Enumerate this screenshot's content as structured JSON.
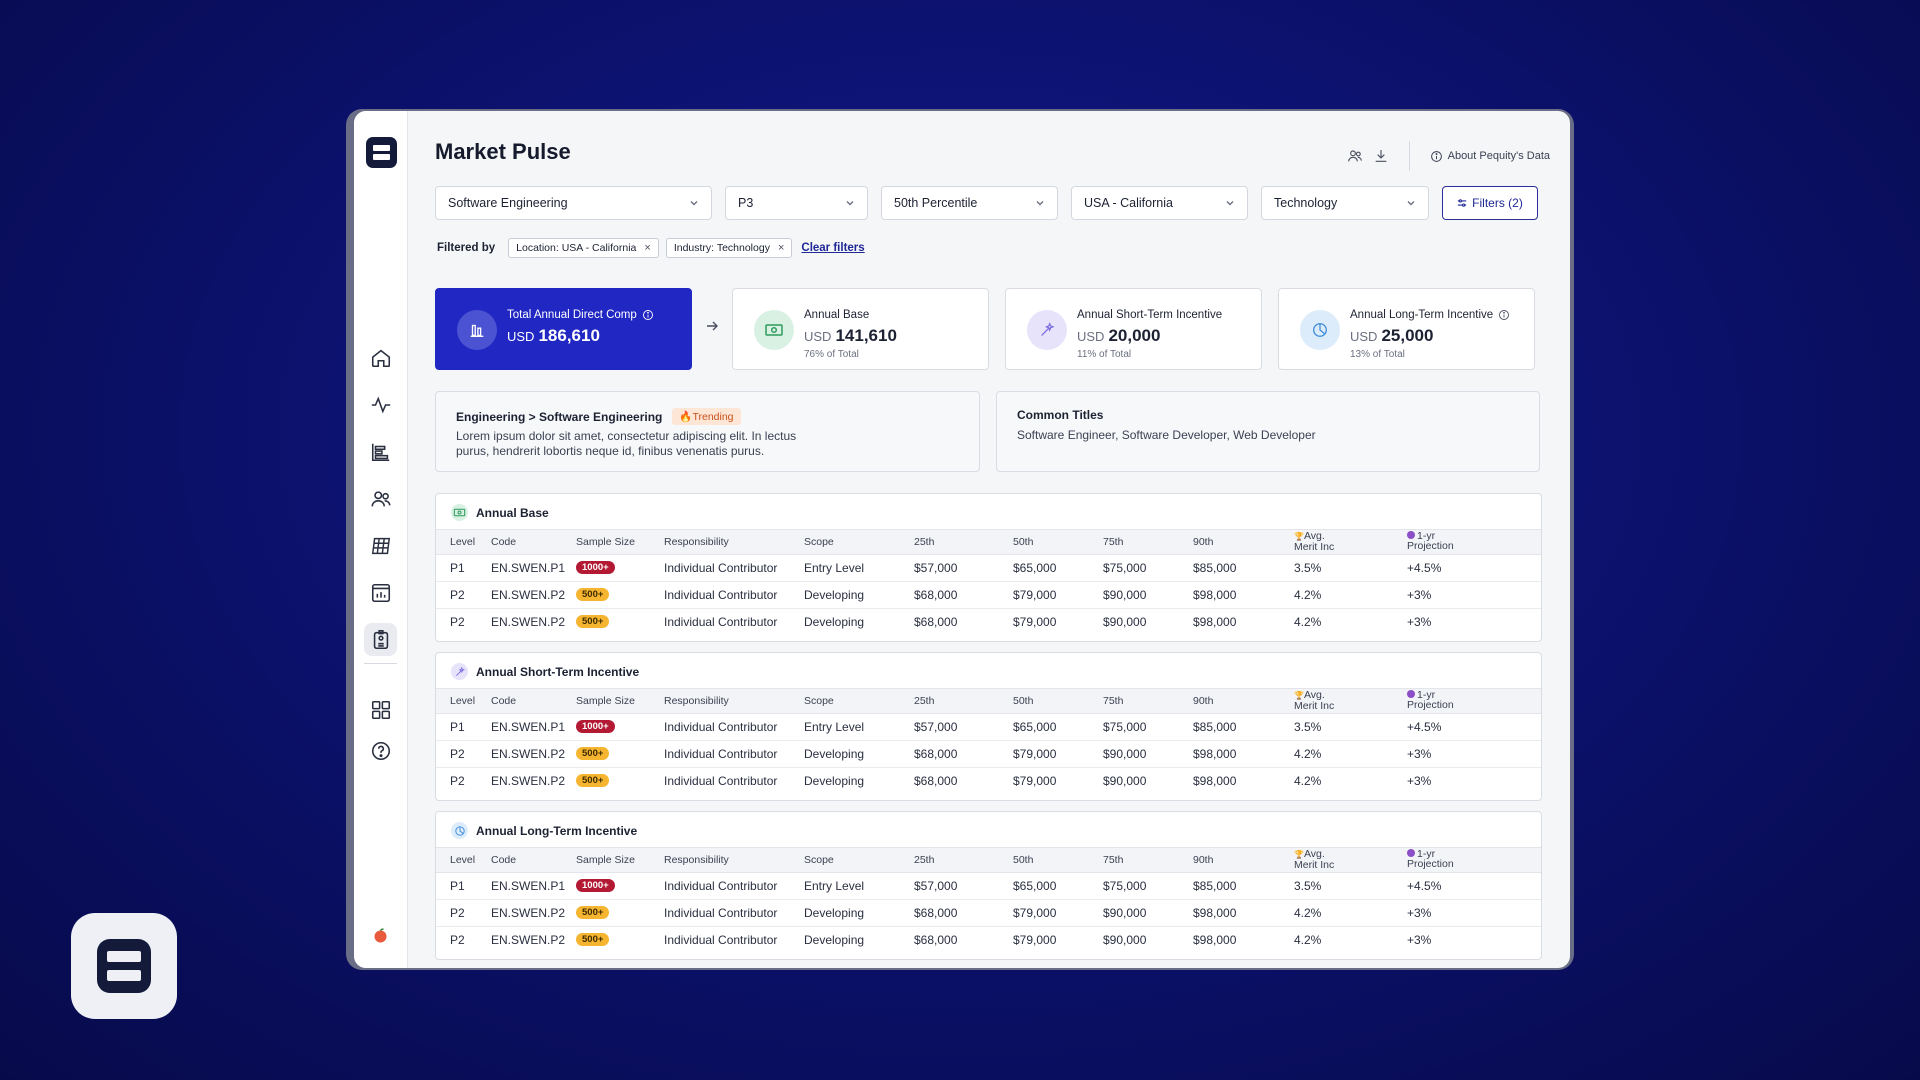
{
  "page": {
    "title": "Market Pulse",
    "about_label": "About Pequity's Data"
  },
  "filters": {
    "selects": [
      "Software Engineering",
      "P3",
      "50th Percentile",
      "USA - California",
      "Technology"
    ],
    "filters_button": "Filters (2)",
    "filtered_by_label": "Filtered by",
    "chips": [
      "Location: USA - California",
      "Industry: Technology"
    ],
    "clear_label": "Clear filters"
  },
  "summary": {
    "total": {
      "label": "Total Annual Direct Comp",
      "currency": "USD",
      "value": "186,610"
    },
    "base": {
      "label": "Annual Base",
      "currency": "USD",
      "value": "141,610",
      "share": "76% of Total"
    },
    "sti": {
      "label": "Annual Short-Term Incentive",
      "currency": "USD",
      "value": "20,000",
      "share": "11% of Total"
    },
    "lti": {
      "label": "Annual Long-Term Incentive",
      "currency": "USD",
      "value": "25,000",
      "share": "13% of Total"
    }
  },
  "job": {
    "path": "Engineering > Software Engineering",
    "trend_label": "Trending",
    "description_1": "Lorem ipsum dolor sit amet, consectetur adipiscing elit. In lectus",
    "description_2": "purus, hendrerit lobortis neque id, finibus venenatis purus."
  },
  "common_titles": {
    "label": "Common Titles",
    "value": "Software Engineer, Software Developer, Web Developer"
  },
  "table_headers": {
    "level": "Level",
    "code": "Code",
    "sample": "Sample Size",
    "responsibility": "Responsibility",
    "scope": "Scope",
    "p25": "25th",
    "p50": "50th",
    "p75": "75th",
    "p90": "90th",
    "merit_1": "Avg.",
    "merit_2": "Merit Inc",
    "proj_1": "1-yr",
    "proj_2": "Projection"
  },
  "tables": [
    {
      "title": "Annual Base",
      "rows": [
        {
          "level": "P1",
          "code": "EN.SWEN.P1",
          "sample": "1000+",
          "responsibility": "Individual Contributor",
          "scope": "Entry Level",
          "p25": "$57,000",
          "p50": "$65,000",
          "p75": "$75,000",
          "p90": "$85,000",
          "merit": "3.5%",
          "proj": "+4.5%"
        },
        {
          "level": "P2",
          "code": "EN.SWEN.P2",
          "sample": "500+",
          "responsibility": "Individual Contributor",
          "scope": "Developing",
          "p25": "$68,000",
          "p50": "$79,000",
          "p75": "$90,000",
          "p90": "$98,000",
          "merit": "4.2%",
          "proj": "+3%"
        },
        {
          "level": "P2",
          "code": "EN.SWEN.P2",
          "sample": "500+",
          "responsibility": "Individual Contributor",
          "scope": "Developing",
          "p25": "$68,000",
          "p50": "$79,000",
          "p75": "$90,000",
          "p90": "$98,000",
          "merit": "4.2%",
          "proj": "+3%"
        }
      ]
    },
    {
      "title": "Annual Short-Term Incentive",
      "rows": [
        {
          "level": "P1",
          "code": "EN.SWEN.P1",
          "sample": "1000+",
          "responsibility": "Individual Contributor",
          "scope": "Entry Level",
          "p25": "$57,000",
          "p50": "$65,000",
          "p75": "$75,000",
          "p90": "$85,000",
          "merit": "3.5%",
          "proj": "+4.5%"
        },
        {
          "level": "P2",
          "code": "EN.SWEN.P2",
          "sample": "500+",
          "responsibility": "Individual Contributor",
          "scope": "Developing",
          "p25": "$68,000",
          "p50": "$79,000",
          "p75": "$90,000",
          "p90": "$98,000",
          "merit": "4.2%",
          "proj": "+3%"
        },
        {
          "level": "P2",
          "code": "EN.SWEN.P2",
          "sample": "500+",
          "responsibility": "Individual Contributor",
          "scope": "Developing",
          "p25": "$68,000",
          "p50": "$79,000",
          "p75": "$90,000",
          "p90": "$98,000",
          "merit": "4.2%",
          "proj": "+3%"
        }
      ]
    },
    {
      "title": "Annual Long-Term Incentive",
      "rows": [
        {
          "level": "P1",
          "code": "EN.SWEN.P1",
          "sample": "1000+",
          "responsibility": "Individual Contributor",
          "scope": "Entry Level",
          "p25": "$57,000",
          "p50": "$65,000",
          "p75": "$75,000",
          "p90": "$85,000",
          "merit": "3.5%",
          "proj": "+4.5%"
        },
        {
          "level": "P2",
          "code": "EN.SWEN.P2",
          "sample": "500+",
          "responsibility": "Individual Contributor",
          "scope": "Developing",
          "p25": "$68,000",
          "p50": "$79,000",
          "p75": "$90,000",
          "p90": "$98,000",
          "merit": "4.2%",
          "proj": "+3%"
        },
        {
          "level": "P2",
          "code": "EN.SWEN.P2",
          "sample": "500+",
          "responsibility": "Individual Contributor",
          "scope": "Developing",
          "p25": "$68,000",
          "p50": "$79,000",
          "p75": "$90,000",
          "p90": "$98,000",
          "merit": "4.2%",
          "proj": "+3%"
        }
      ]
    }
  ],
  "icons": {
    "sidebar": [
      "home-icon",
      "activity-icon",
      "bar-chart-icon",
      "users-icon",
      "grid-table-icon",
      "chart-calendar-icon",
      "id-badge-icon",
      "apps-grid-icon",
      "help-icon"
    ],
    "top": [
      "user-group-icon",
      "download-icon",
      "info-icon"
    ]
  },
  "colors": {
    "brand": "#2027c2",
    "background": "#0c1270",
    "badge_high": "#b31932",
    "badge_mid": "#f6b531",
    "trend": "#c8501b"
  }
}
